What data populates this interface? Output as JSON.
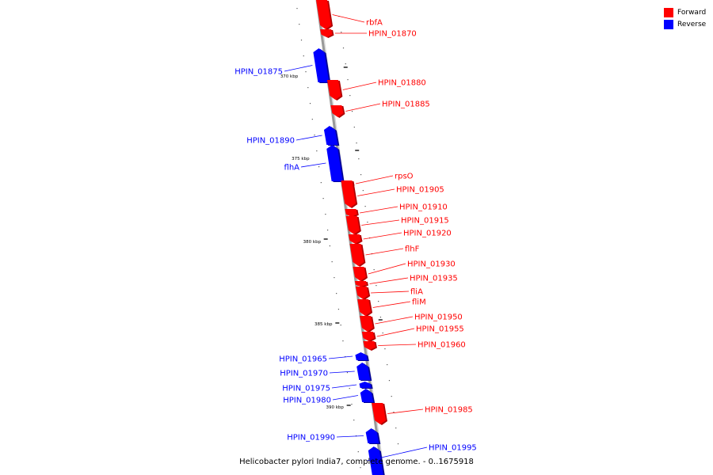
{
  "colors": {
    "forward": "#ff0000",
    "reverse": "#0000ff",
    "backbone": "#999999"
  },
  "legend": [
    {
      "label": "Forward",
      "color": "#ff0000"
    },
    {
      "label": "Reverse",
      "color": "#0000ff"
    }
  ],
  "caption": "Helicobacter pylori India7, complete genome. - 0..1675918",
  "scale_labels": [
    "370 kbp",
    "375 kbp",
    "380 kbp",
    "385 kbp",
    "390 kbp"
  ],
  "genes": [
    {
      "name": "rbfA",
      "strand": "forward"
    },
    {
      "name": "HPIN_01870",
      "strand": "forward"
    },
    {
      "name": "HPIN_01875",
      "strand": "reverse"
    },
    {
      "name": "HPIN_01880",
      "strand": "forward"
    },
    {
      "name": "HPIN_01885",
      "strand": "forward"
    },
    {
      "name": "HPIN_01890",
      "strand": "reverse"
    },
    {
      "name": "flhA",
      "strand": "reverse"
    },
    {
      "name": "rpsO",
      "strand": "forward"
    },
    {
      "name": "HPIN_01905",
      "strand": "forward"
    },
    {
      "name": "HPIN_01910",
      "strand": "forward"
    },
    {
      "name": "HPIN_01915",
      "strand": "forward"
    },
    {
      "name": "HPIN_01920",
      "strand": "forward"
    },
    {
      "name": "flhF",
      "strand": "forward"
    },
    {
      "name": "HPIN_01930",
      "strand": "forward"
    },
    {
      "name": "HPIN_01935",
      "strand": "forward"
    },
    {
      "name": "fliA",
      "strand": "forward"
    },
    {
      "name": "fliM",
      "strand": "forward"
    },
    {
      "name": "HPIN_01950",
      "strand": "forward"
    },
    {
      "name": "HPIN_01955",
      "strand": "forward"
    },
    {
      "name": "HPIN_01960",
      "strand": "forward"
    },
    {
      "name": "HPIN_01965",
      "strand": "reverse"
    },
    {
      "name": "HPIN_01970",
      "strand": "reverse"
    },
    {
      "name": "HPIN_01975",
      "strand": "reverse"
    },
    {
      "name": "HPIN_01980",
      "strand": "reverse"
    },
    {
      "name": "HPIN_01985",
      "strand": "forward"
    },
    {
      "name": "HPIN_01990",
      "strand": "reverse"
    },
    {
      "name": "HPIN_01995",
      "strand": "reverse"
    }
  ]
}
